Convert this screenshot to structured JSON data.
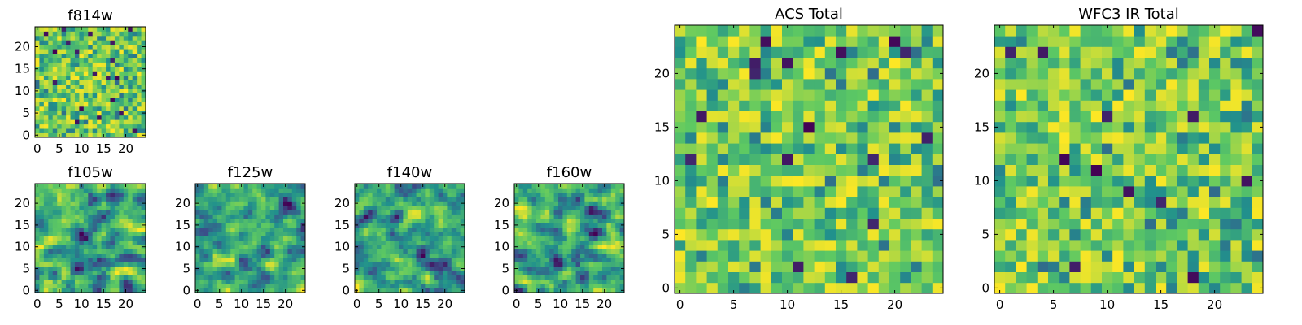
{
  "figure": {
    "description_free": true
  },
  "chart_data": [
    {
      "type": "heatmap",
      "title": "f814w",
      "grid_size": [
        25,
        25
      ],
      "xlim": [
        -0.5,
        24.5
      ],
      "ylim": [
        -0.5,
        24.5
      ],
      "xticks": [
        0,
        5,
        10,
        15,
        20
      ],
      "yticks": [
        0,
        5,
        10,
        15,
        20
      ],
      "colormap": [
        "#440154",
        "#3b528b",
        "#21918c",
        "#5ec962",
        "#fde725"
      ],
      "values_note": "pixel noise image"
    },
    {
      "type": "heatmap",
      "title": "f105w",
      "grid_size": [
        25,
        25
      ],
      "xlim": [
        -0.5,
        24.5
      ],
      "ylim": [
        -0.5,
        24.5
      ],
      "xticks": [
        0,
        5,
        10,
        15,
        20
      ],
      "yticks": [
        0,
        5,
        10,
        15,
        20
      ],
      "colormap": [
        "#440154",
        "#3b528b",
        "#21918c",
        "#5ec962",
        "#fde725"
      ],
      "values_note": "smoothed noise image"
    },
    {
      "type": "heatmap",
      "title": "f125w",
      "grid_size": [
        25,
        25
      ],
      "xlim": [
        -0.5,
        24.5
      ],
      "ylim": [
        -0.5,
        24.5
      ],
      "xticks": [
        0,
        5,
        10,
        15,
        20
      ],
      "yticks": [
        0,
        5,
        10,
        15,
        20
      ],
      "colormap": [
        "#440154",
        "#3b528b",
        "#21918c",
        "#5ec962",
        "#fde725"
      ],
      "values_note": "smoothed noise image"
    },
    {
      "type": "heatmap",
      "title": "f140w",
      "grid_size": [
        25,
        25
      ],
      "xlim": [
        -0.5,
        24.5
      ],
      "ylim": [
        -0.5,
        24.5
      ],
      "xticks": [
        0,
        5,
        10,
        15,
        20
      ],
      "yticks": [
        0,
        5,
        10,
        15,
        20
      ],
      "colormap": [
        "#440154",
        "#3b528b",
        "#21918c",
        "#5ec962",
        "#fde725"
      ],
      "values_note": "smoothed noise image"
    },
    {
      "type": "heatmap",
      "title": "f160w",
      "grid_size": [
        25,
        25
      ],
      "xlim": [
        -0.5,
        24.5
      ],
      "ylim": [
        -0.5,
        24.5
      ],
      "xticks": [
        0,
        5,
        10,
        15,
        20
      ],
      "yticks": [
        0,
        5,
        10,
        15,
        20
      ],
      "colormap": [
        "#440154",
        "#3b528b",
        "#21918c",
        "#5ec962",
        "#fde725"
      ],
      "values_note": "smoothed noise image"
    },
    {
      "type": "heatmap",
      "title": "ACS Total",
      "grid_size": [
        25,
        25
      ],
      "xlim": [
        -0.5,
        24.5
      ],
      "ylim": [
        -0.5,
        24.5
      ],
      "xticks": [
        0,
        5,
        10,
        15,
        20
      ],
      "yticks": [
        0,
        5,
        10,
        15,
        20
      ],
      "colormap": [
        "#440154",
        "#3b528b",
        "#21918c",
        "#5ec962",
        "#fde725"
      ],
      "values_note": "pixel noise image"
    },
    {
      "type": "heatmap",
      "title": "WFC3 IR Total",
      "grid_size": [
        25,
        25
      ],
      "xlim": [
        -0.5,
        24.5
      ],
      "ylim": [
        -0.5,
        24.5
      ],
      "xticks": [
        0,
        5,
        10,
        15,
        20
      ],
      "yticks": [
        0,
        5,
        10,
        15,
        20
      ],
      "colormap": [
        "#440154",
        "#3b528b",
        "#21918c",
        "#5ec962",
        "#fde725"
      ],
      "values_note": "pixel noise image"
    }
  ]
}
